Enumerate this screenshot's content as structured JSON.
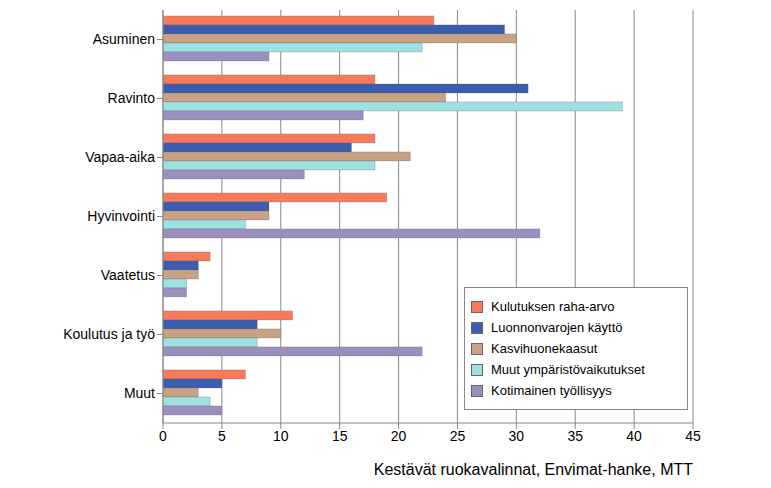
{
  "chart_data": {
    "type": "bar",
    "orientation": "horizontal",
    "xlabel": "Kestävät ruokavalinnat, Envimat-hanke, MTT",
    "categories": [
      "Asuminen",
      "Ravinto",
      "Vapaa-aika",
      "Hyvinvointi",
      "Vaatetus",
      "Koulutus ja työ",
      "Muut"
    ],
    "series": [
      {
        "name": "Kulutuksen raha-arvo",
        "color": "#f87a5a",
        "values": [
          23,
          18,
          18,
          19,
          4,
          11,
          7
        ]
      },
      {
        "name": "Luonnonvarojen käyttö",
        "color": "#3a5db0",
        "values": [
          29,
          31,
          16,
          9,
          3,
          8,
          5
        ]
      },
      {
        "name": "Kasvihuonekaasut",
        "color": "#c9a183",
        "values": [
          30,
          24,
          21,
          9,
          3,
          10,
          3
        ]
      },
      {
        "name": "Muut ympäristövaikutukset",
        "color": "#9fe0e3",
        "values": [
          22,
          39,
          18,
          7,
          2,
          8,
          4
        ]
      },
      {
        "name": "Kotimainen työllisyys",
        "color": "#9b8fc0",
        "values": [
          9,
          17,
          12,
          32,
          2,
          22,
          5
        ]
      }
    ],
    "xlim": [
      0,
      45
    ],
    "xticks": [
      0,
      5,
      10,
      15,
      20,
      25,
      30,
      35,
      40,
      45
    ],
    "grid": true,
    "legend": "lower right"
  }
}
